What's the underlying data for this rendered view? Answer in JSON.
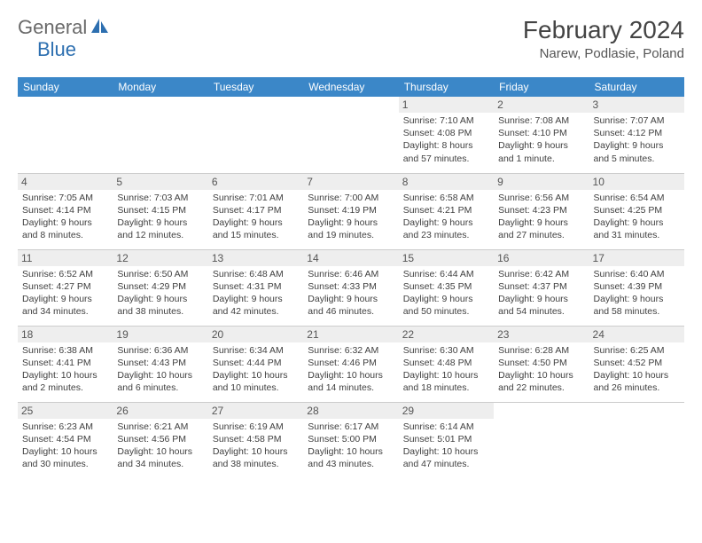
{
  "logo": {
    "part1": "General",
    "part2": "Blue"
  },
  "header": {
    "month_title": "February 2024",
    "location": "Narew, Podlasie, Poland"
  },
  "colors": {
    "header_bg": "#3b87c8",
    "header_text": "#ffffff",
    "daynum_bg": "#eeeeee",
    "logo_gray": "#6a6a6a",
    "logo_blue": "#2d6fb0",
    "border": "#cccccc"
  },
  "weekdays": [
    "Sunday",
    "Monday",
    "Tuesday",
    "Wednesday",
    "Thursday",
    "Friday",
    "Saturday"
  ],
  "weeks": [
    [
      null,
      null,
      null,
      null,
      {
        "n": "1",
        "sr": "7:10 AM",
        "ss": "4:08 PM",
        "dl": "8 hours and 57 minutes."
      },
      {
        "n": "2",
        "sr": "7:08 AM",
        "ss": "4:10 PM",
        "dl": "9 hours and 1 minute."
      },
      {
        "n": "3",
        "sr": "7:07 AM",
        "ss": "4:12 PM",
        "dl": "9 hours and 5 minutes."
      }
    ],
    [
      {
        "n": "4",
        "sr": "7:05 AM",
        "ss": "4:14 PM",
        "dl": "9 hours and 8 minutes."
      },
      {
        "n": "5",
        "sr": "7:03 AM",
        "ss": "4:15 PM",
        "dl": "9 hours and 12 minutes."
      },
      {
        "n": "6",
        "sr": "7:01 AM",
        "ss": "4:17 PM",
        "dl": "9 hours and 15 minutes."
      },
      {
        "n": "7",
        "sr": "7:00 AM",
        "ss": "4:19 PM",
        "dl": "9 hours and 19 minutes."
      },
      {
        "n": "8",
        "sr": "6:58 AM",
        "ss": "4:21 PM",
        "dl": "9 hours and 23 minutes."
      },
      {
        "n": "9",
        "sr": "6:56 AM",
        "ss": "4:23 PM",
        "dl": "9 hours and 27 minutes."
      },
      {
        "n": "10",
        "sr": "6:54 AM",
        "ss": "4:25 PM",
        "dl": "9 hours and 31 minutes."
      }
    ],
    [
      {
        "n": "11",
        "sr": "6:52 AM",
        "ss": "4:27 PM",
        "dl": "9 hours and 34 minutes."
      },
      {
        "n": "12",
        "sr": "6:50 AM",
        "ss": "4:29 PM",
        "dl": "9 hours and 38 minutes."
      },
      {
        "n": "13",
        "sr": "6:48 AM",
        "ss": "4:31 PM",
        "dl": "9 hours and 42 minutes."
      },
      {
        "n": "14",
        "sr": "6:46 AM",
        "ss": "4:33 PM",
        "dl": "9 hours and 46 minutes."
      },
      {
        "n": "15",
        "sr": "6:44 AM",
        "ss": "4:35 PM",
        "dl": "9 hours and 50 minutes."
      },
      {
        "n": "16",
        "sr": "6:42 AM",
        "ss": "4:37 PM",
        "dl": "9 hours and 54 minutes."
      },
      {
        "n": "17",
        "sr": "6:40 AM",
        "ss": "4:39 PM",
        "dl": "9 hours and 58 minutes."
      }
    ],
    [
      {
        "n": "18",
        "sr": "6:38 AM",
        "ss": "4:41 PM",
        "dl": "10 hours and 2 minutes."
      },
      {
        "n": "19",
        "sr": "6:36 AM",
        "ss": "4:43 PM",
        "dl": "10 hours and 6 minutes."
      },
      {
        "n": "20",
        "sr": "6:34 AM",
        "ss": "4:44 PM",
        "dl": "10 hours and 10 minutes."
      },
      {
        "n": "21",
        "sr": "6:32 AM",
        "ss": "4:46 PM",
        "dl": "10 hours and 14 minutes."
      },
      {
        "n": "22",
        "sr": "6:30 AM",
        "ss": "4:48 PM",
        "dl": "10 hours and 18 minutes."
      },
      {
        "n": "23",
        "sr": "6:28 AM",
        "ss": "4:50 PM",
        "dl": "10 hours and 22 minutes."
      },
      {
        "n": "24",
        "sr": "6:25 AM",
        "ss": "4:52 PM",
        "dl": "10 hours and 26 minutes."
      }
    ],
    [
      {
        "n": "25",
        "sr": "6:23 AM",
        "ss": "4:54 PM",
        "dl": "10 hours and 30 minutes."
      },
      {
        "n": "26",
        "sr": "6:21 AM",
        "ss": "4:56 PM",
        "dl": "10 hours and 34 minutes."
      },
      {
        "n": "27",
        "sr": "6:19 AM",
        "ss": "4:58 PM",
        "dl": "10 hours and 38 minutes."
      },
      {
        "n": "28",
        "sr": "6:17 AM",
        "ss": "5:00 PM",
        "dl": "10 hours and 43 minutes."
      },
      {
        "n": "29",
        "sr": "6:14 AM",
        "ss": "5:01 PM",
        "dl": "10 hours and 47 minutes."
      },
      null,
      null
    ]
  ],
  "labels": {
    "sunrise": "Sunrise:",
    "sunset": "Sunset:",
    "daylight": "Daylight:"
  }
}
